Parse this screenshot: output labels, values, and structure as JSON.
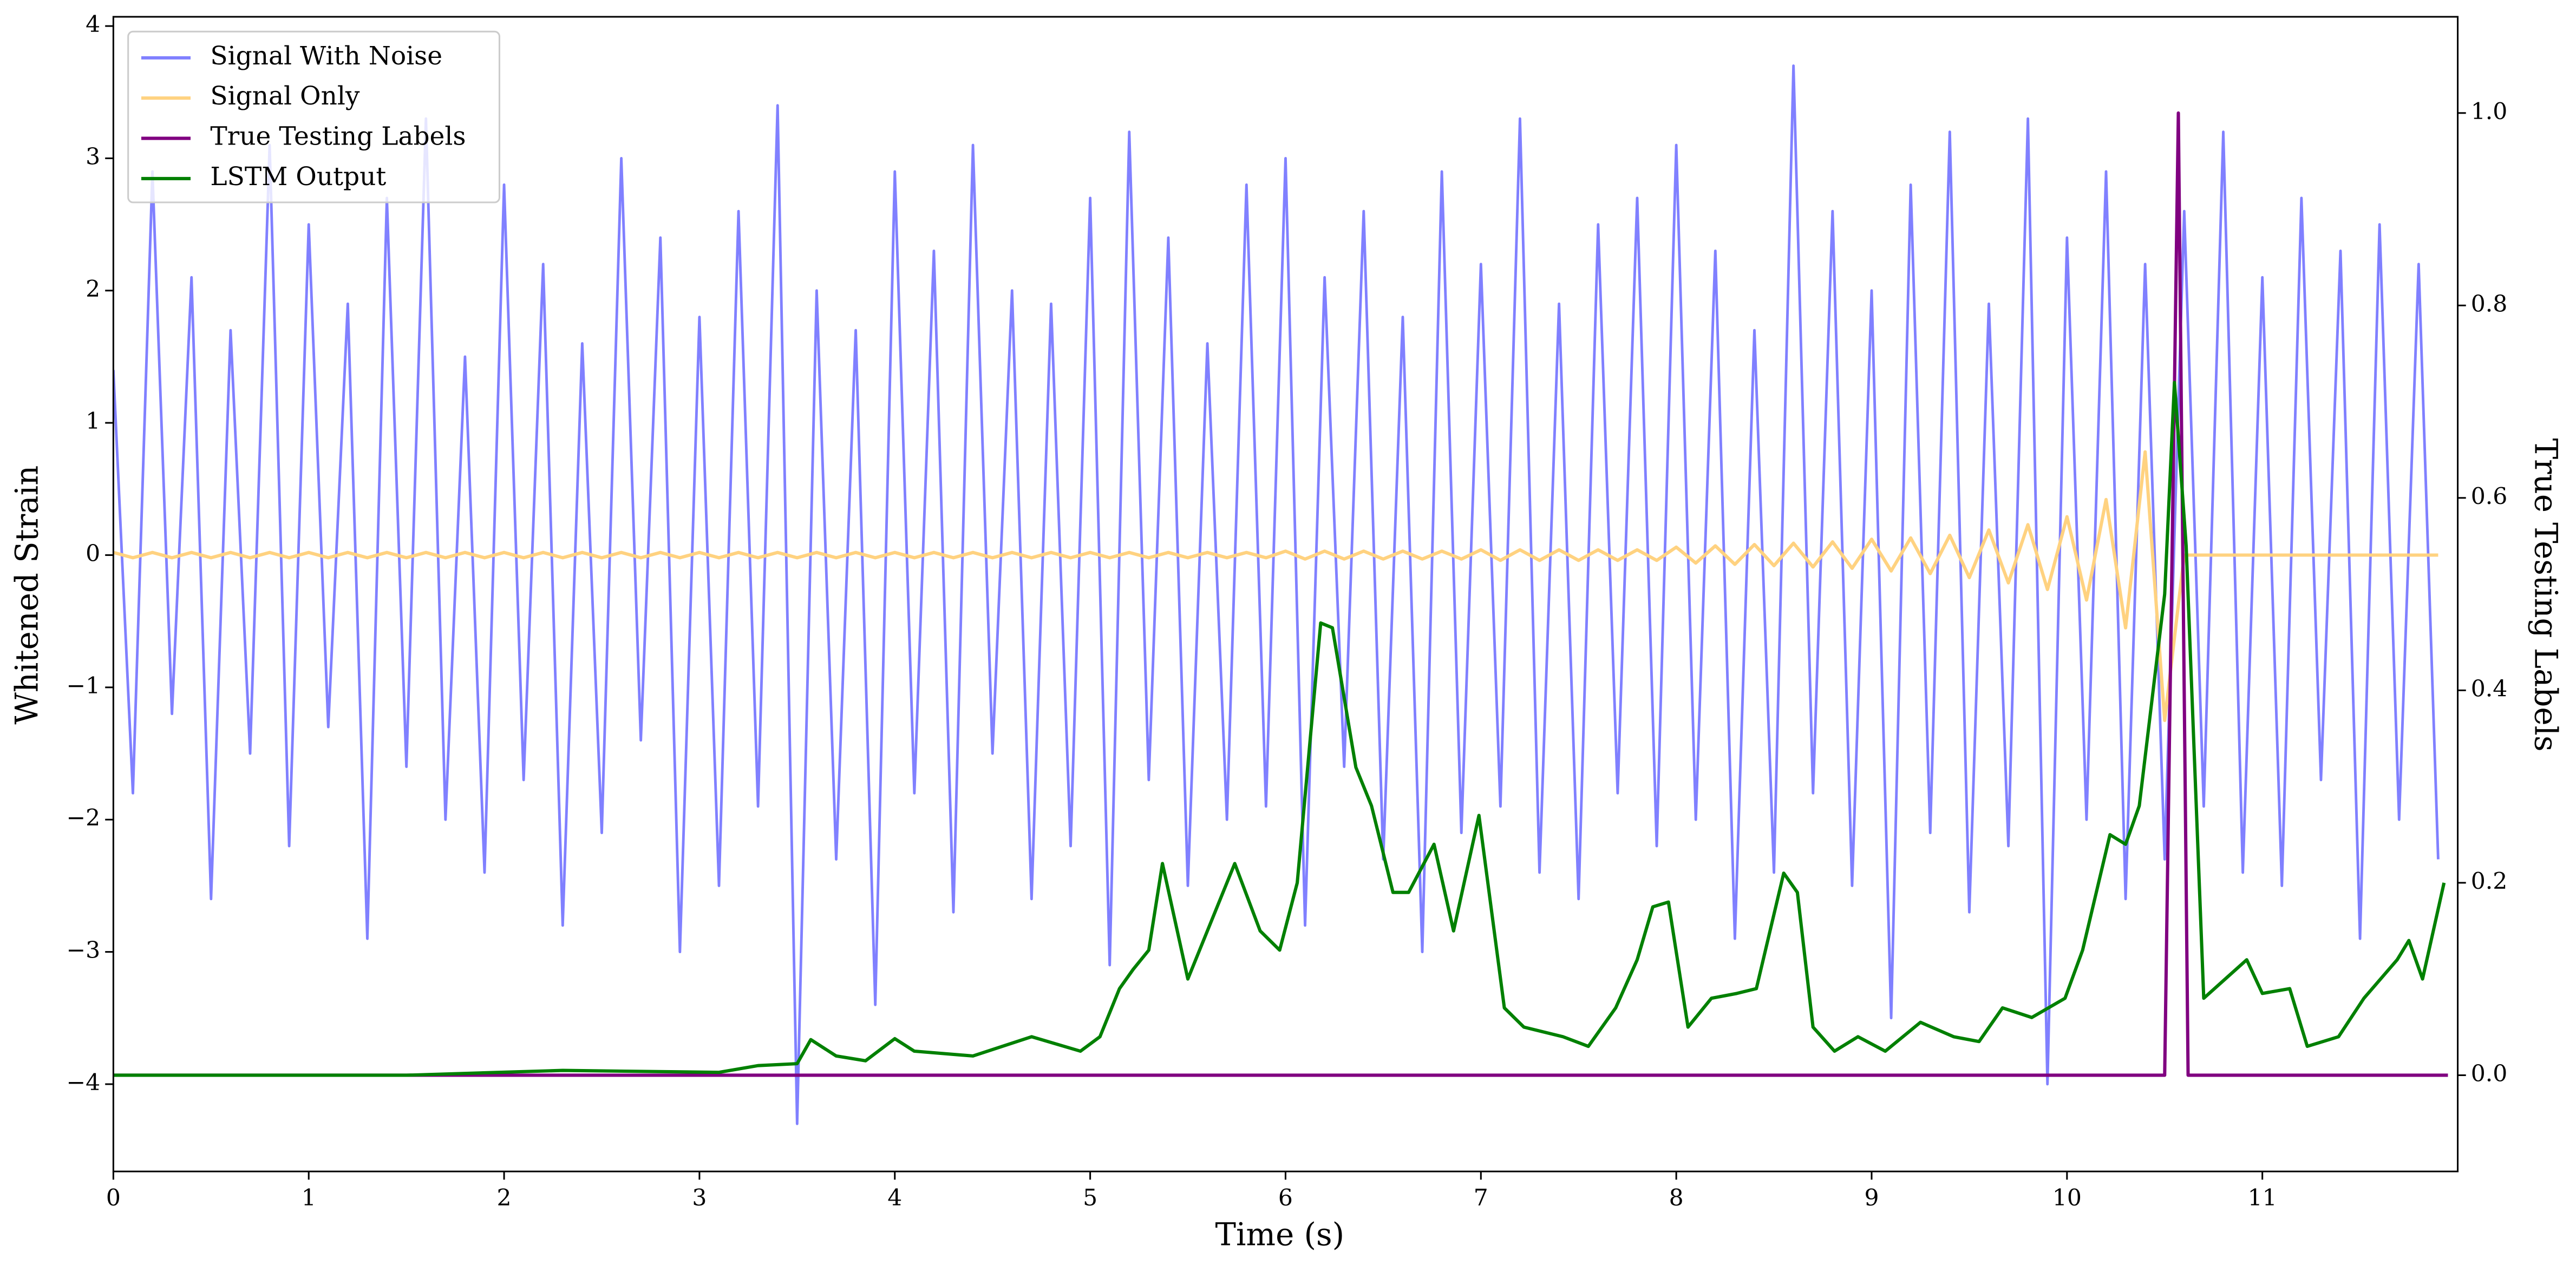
{
  "chart_data": {
    "type": "line",
    "xlabel": "Time (s)",
    "ylabel": "Whitened Strain",
    "y2label": "True Testing Labels",
    "xlim": [
      0,
      12
    ],
    "ylim": [
      -4.66,
      4.07
    ],
    "y2lim": [
      -0.1,
      1.1
    ],
    "xticks": [
      0,
      1,
      2,
      3,
      4,
      5,
      6,
      7,
      8,
      9,
      10,
      11
    ],
    "yticks": [
      {
        "value": -4,
        "label": "−4"
      },
      {
        "value": -3,
        "label": "−3"
      },
      {
        "value": -2,
        "label": "−2"
      },
      {
        "value": -1,
        "label": "−1"
      },
      0,
      1,
      2,
      3,
      4
    ],
    "y2ticks": [
      {
        "value": 0,
        "label": "0.0"
      },
      {
        "value": 0.2,
        "label": "0.2"
      },
      {
        "value": 0.4,
        "label": "0.4"
      },
      {
        "value": 0.6,
        "label": "0.6"
      },
      {
        "value": 0.8,
        "label": "0.8"
      },
      {
        "value": 1,
        "label": "1.0"
      }
    ],
    "legend": "upper left",
    "x": [
      0,
      0.1,
      0.2,
      0.3,
      0.4,
      0.5,
      0.6,
      0.7,
      0.8,
      0.9,
      1,
      1.1,
      1.2,
      1.3,
      1.4,
      1.5,
      1.6,
      1.7,
      1.8,
      1.9,
      2,
      2.1,
      2.2,
      2.3,
      2.4,
      2.5,
      2.6,
      2.7,
      2.8,
      2.9,
      3,
      3.1,
      3.2,
      3.3,
      3.4,
      3.5,
      3.6,
      3.7,
      3.8,
      3.9,
      4,
      4.1,
      4.2,
      4.3,
      4.4,
      4.5,
      4.6,
      4.7,
      4.8,
      4.9,
      5,
      5.1,
      5.2,
      5.3,
      5.4,
      5.5,
      5.6,
      5.7,
      5.8,
      5.9,
      6,
      6.1,
      6.2,
      6.3,
      6.4,
      6.5,
      6.6,
      6.7,
      6.8,
      6.9,
      7,
      7.1,
      7.2,
      7.3,
      7.4,
      7.5,
      7.6,
      7.7,
      7.8,
      7.9,
      8,
      8.1,
      8.2,
      8.3,
      8.4,
      8.5,
      8.6,
      8.7,
      8.8,
      8.9,
      9,
      9.1,
      9.2,
      9.3,
      9.4,
      9.5,
      9.6,
      9.7,
      9.8,
      9.9,
      10,
      10.1,
      10.2,
      10.3,
      10.4,
      10.5,
      10.6,
      10.7,
      10.8,
      10.9,
      11,
      11.1,
      11.2,
      11.3,
      11.4,
      11.5,
      11.6,
      11.7,
      11.8,
      11.9
    ],
    "series": [
      {
        "name": "Signal With Noise",
        "color": "#8080ff",
        "axis": "y",
        "values": [
          1.4,
          -1.8,
          2.9,
          -1.2,
          2.1,
          -2.6,
          1.7,
          -1.5,
          3.1,
          -2.2,
          2.5,
          -1.3,
          1.9,
          -2.9,
          2.7,
          -1.6,
          3.3,
          -2.0,
          1.5,
          -2.4,
          2.8,
          -1.7,
          2.2,
          -2.8,
          1.6,
          -2.1,
          3.0,
          -1.4,
          2.4,
          -3.0,
          1.8,
          -2.5,
          2.6,
          -1.9,
          3.4,
          -4.3,
          2.0,
          -2.3,
          1.7,
          -3.4,
          2.9,
          -1.8,
          2.3,
          -2.7,
          3.1,
          -1.5,
          2.0,
          -2.6,
          1.9,
          -2.2,
          2.7,
          -3.1,
          3.2,
          -1.7,
          2.4,
          -2.5,
          1.6,
          -2.0,
          2.8,
          -1.9,
          3.0,
          -2.8,
          2.1,
          -1.6,
          2.6,
          -2.3,
          1.8,
          -3.0,
          2.9,
          -2.1,
          2.2,
          -1.9,
          3.3,
          -2.4,
          1.9,
          -2.6,
          2.5,
          -1.8,
          2.7,
          -2.2,
          3.1,
          -2.0,
          2.3,
          -2.9,
          1.7,
          -2.4,
          3.7,
          -1.8,
          2.6,
          -2.5,
          2.0,
          -3.5,
          2.8,
          -2.1,
          3.2,
          -2.7,
          1.9,
          -2.2,
          3.3,
          -4.0,
          2.4,
          -2.0,
          2.9,
          -2.6,
          2.2,
          -2.3,
          2.6,
          -1.9,
          3.2,
          -2.4,
          2.1,
          -2.5,
          2.7,
          -1.7,
          2.3,
          -2.9,
          2.5,
          -2.0,
          2.2,
          -2.3
        ]
      },
      {
        "name": "Signal Only",
        "color": "#ffd280",
        "axis": "y",
        "values": [
          0.02,
          -0.02,
          0.02,
          -0.02,
          0.02,
          -0.02,
          0.02,
          -0.02,
          0.02,
          -0.02,
          0.02,
          -0.02,
          0.02,
          -0.02,
          0.02,
          -0.02,
          0.02,
          -0.02,
          0.02,
          -0.02,
          0.02,
          -0.02,
          0.02,
          -0.02,
          0.02,
          -0.02,
          0.02,
          -0.02,
          0.02,
          -0.02,
          0.02,
          -0.02,
          0.02,
          -0.02,
          0.02,
          -0.02,
          0.02,
          -0.02,
          0.02,
          -0.02,
          0.02,
          -0.02,
          0.02,
          -0.02,
          0.02,
          -0.02,
          0.02,
          -0.02,
          0.02,
          -0.02,
          0.02,
          -0.02,
          0.02,
          -0.02,
          0.02,
          -0.02,
          0.02,
          -0.02,
          0.02,
          -0.02,
          0.03,
          -0.03,
          0.03,
          -0.03,
          0.03,
          -0.03,
          0.03,
          -0.03,
          0.03,
          -0.03,
          0.04,
          -0.04,
          0.04,
          -0.04,
          0.04,
          -0.04,
          0.04,
          -0.04,
          0.04,
          -0.04,
          0.06,
          -0.06,
          0.07,
          -0.07,
          0.08,
          -0.08,
          0.09,
          -0.09,
          0.1,
          -0.1,
          0.12,
          -0.12,
          0.13,
          -0.14,
          0.15,
          -0.17,
          0.19,
          -0.21,
          0.23,
          -0.26,
          0.29,
          -0.34,
          0.42,
          -0.55,
          0.78,
          -1.25,
          0,
          0,
          0,
          0,
          0,
          0,
          0,
          0,
          0,
          0,
          0,
          0,
          0,
          0
        ]
      },
      {
        "name": "True Testing Labels",
        "color": "#800080",
        "axis": "y2",
        "x": [
          0,
          10.5,
          10.57,
          10.62,
          11.95
        ],
        "values": [
          0,
          0,
          1,
          0,
          0
        ]
      },
      {
        "name": "LSTM Output",
        "color": "#008000",
        "axis": "y2",
        "x": [
          0,
          1.5,
          2.3,
          3.1,
          3.3,
          3.5,
          3.57,
          3.7,
          3.85,
          4.0,
          4.1,
          4.4,
          4.7,
          4.95,
          5.05,
          5.15,
          5.22,
          5.3,
          5.37,
          5.5,
          5.74,
          5.87,
          5.97,
          6.06,
          6.18,
          6.24,
          6.36,
          6.44,
          6.55,
          6.63,
          6.76,
          6.86,
          6.99,
          7.12,
          7.22,
          7.42,
          7.55,
          7.69,
          7.8,
          7.88,
          7.96,
          8.06,
          8.18,
          8.31,
          8.41,
          8.55,
          8.62,
          8.7,
          8.81,
          8.93,
          9.07,
          9.25,
          9.42,
          9.55,
          9.67,
          9.82,
          9.99,
          10.08,
          10.22,
          10.3,
          10.37,
          10.5,
          10.55,
          10.61,
          10.7,
          10.81,
          10.92,
          11.0,
          11.14,
          11.23,
          11.39,
          11.52,
          11.69,
          11.75,
          11.82,
          11.93
        ],
        "values": [
          0,
          0,
          0.005,
          0.003,
          0.01,
          0.012,
          0.037,
          0.02,
          0.015,
          0.038,
          0.025,
          0.02,
          0.04,
          0.025,
          0.04,
          0.09,
          0.11,
          0.13,
          0.22,
          0.1,
          0.22,
          0.15,
          0.13,
          0.2,
          0.47,
          0.465,
          0.32,
          0.28,
          0.19,
          0.19,
          0.24,
          0.15,
          0.27,
          0.07,
          0.05,
          0.04,
          0.03,
          0.07,
          0.12,
          0.175,
          0.18,
          0.05,
          0.08,
          0.085,
          0.09,
          0.21,
          0.19,
          0.05,
          0.025,
          0.04,
          0.025,
          0.055,
          0.04,
          0.035,
          0.07,
          0.06,
          0.08,
          0.13,
          0.25,
          0.24,
          0.28,
          0.5,
          0.72,
          0.55,
          0.08,
          0.1,
          0.12,
          0.085,
          0.09,
          0.03,
          0.04,
          0.08,
          0.12,
          0.14,
          0.1,
          0.2
        ]
      }
    ]
  }
}
